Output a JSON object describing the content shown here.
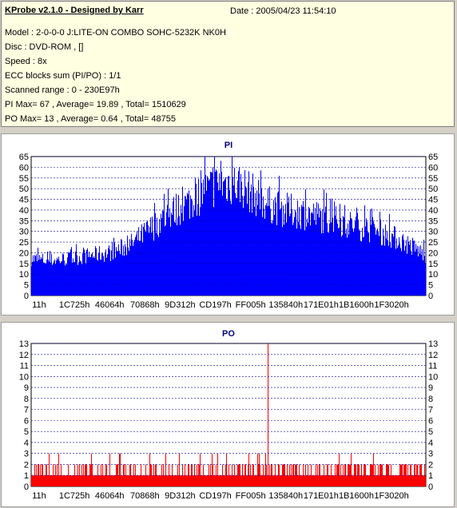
{
  "info": {
    "title": "KProbe v2.1.0 - Designed by Karr",
    "date": "Date : 2005/04/23 11:54:10",
    "model": "Model : 2-0-0-0 J:LITE-ON COMBO SOHC-5232K NK0H",
    "disc": "Disc : DVD-ROM ,  []",
    "speed": "Speed : 8x",
    "ecc": "ECC blocks sum (PI/PO) : 1/1",
    "range": "Scanned range : 0 - 230E97h",
    "pi_summary": "PI Max= 67 , Average= 19.89 , Total= 1510629",
    "po_summary": "PO Max= 13 , Average= 0.64 , Total= 48755"
  },
  "chart_data": [
    {
      "type": "bar",
      "title": "PI",
      "color": "#0000ff",
      "x_tick_labels": [
        "11h",
        "1C725h",
        "46064h",
        "70868h",
        "9D312h",
        "CD197h",
        "FF005h",
        "135840h",
        "171E01h",
        "1B1600h",
        "1F3020h"
      ],
      "ylim": [
        0,
        65
      ],
      "y_ticks": [
        0,
        5,
        10,
        15,
        20,
        25,
        30,
        35,
        40,
        45,
        50,
        55,
        60,
        65
      ],
      "grid": true,
      "profile": [
        [
          0,
          19
        ],
        [
          0.04,
          18
        ],
        [
          0.1,
          19
        ],
        [
          0.16,
          21
        ],
        [
          0.2,
          22
        ],
        [
          0.25,
          26
        ],
        [
          0.3,
          34
        ],
        [
          0.35,
          42
        ],
        [
          0.4,
          48
        ],
        [
          0.43,
          52
        ],
        [
          0.46,
          56
        ],
        [
          0.5,
          58
        ],
        [
          0.53,
          57
        ],
        [
          0.57,
          51
        ],
        [
          0.6,
          47
        ],
        [
          0.64,
          44
        ],
        [
          0.68,
          43
        ],
        [
          0.7,
          42
        ],
        [
          0.72,
          41
        ],
        [
          0.76,
          39
        ],
        [
          0.8,
          37
        ],
        [
          0.84,
          35
        ],
        [
          0.88,
          33
        ],
        [
          0.92,
          30
        ],
        [
          0.96,
          26
        ],
        [
          1,
          21
        ]
      ],
      "spikes": [
        [
          0.44,
          66
        ],
        [
          0.48,
          63
        ],
        [
          0.51,
          66
        ],
        [
          0.5,
          59
        ],
        [
          0.46,
          60
        ]
      ],
      "max": 67
    },
    {
      "type": "bar",
      "title": "PO",
      "color": "#ff0000",
      "x_tick_labels": [
        "11h",
        "1C725h",
        "46064h",
        "70868h",
        "9D312h",
        "CD197h",
        "FF005h",
        "135840h",
        "171E01h",
        "1B1600h",
        "1F3020h"
      ],
      "ylim": [
        0,
        13
      ],
      "y_ticks": [
        0,
        1,
        2,
        3,
        4,
        5,
        6,
        7,
        8,
        9,
        10,
        11,
        12,
        13
      ],
      "grid": true,
      "baseline": 1,
      "spikes": [
        [
          0.6,
          13
        ]
      ],
      "max": 13
    }
  ]
}
